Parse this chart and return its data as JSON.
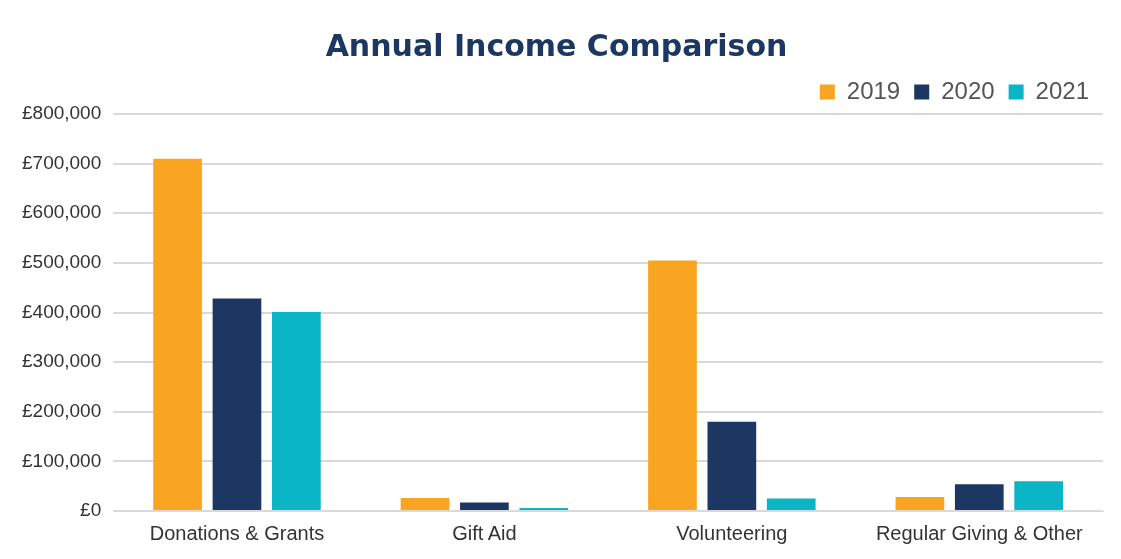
{
  "chart_data": {
    "type": "bar",
    "title": "Annual Income Comparison",
    "categories": [
      "Donations & Grants",
      "Gift Aid",
      "Volunteering",
      "Regular Giving & Other"
    ],
    "series": [
      {
        "name": "2019",
        "color": "#f9a521",
        "values": [
          710000,
          26000,
          505000,
          28000
        ]
      },
      {
        "name": "2020",
        "color": "#1c3862",
        "values": [
          428000,
          17000,
          180000,
          54000
        ]
      },
      {
        "name": "2021",
        "color": "#0ab5c6",
        "values": [
          401000,
          6000,
          25000,
          60000
        ]
      }
    ],
    "ylim": [
      0,
      800000
    ],
    "yticks": [
      {
        "value": 0,
        "label": "£0"
      },
      {
        "value": 100000,
        "label": "£100,000"
      },
      {
        "value": 200000,
        "label": "£200,000"
      },
      {
        "value": 300000,
        "label": "£300,000"
      },
      {
        "value": 400000,
        "label": "£400,000"
      },
      {
        "value": 500000,
        "label": "£500,000"
      },
      {
        "value": 600000,
        "label": "£600,000"
      },
      {
        "value": 700000,
        "label": "£700,000"
      },
      {
        "value": 800000,
        "label": "£800,000"
      }
    ],
    "grid": "y",
    "legend": "top right"
  }
}
